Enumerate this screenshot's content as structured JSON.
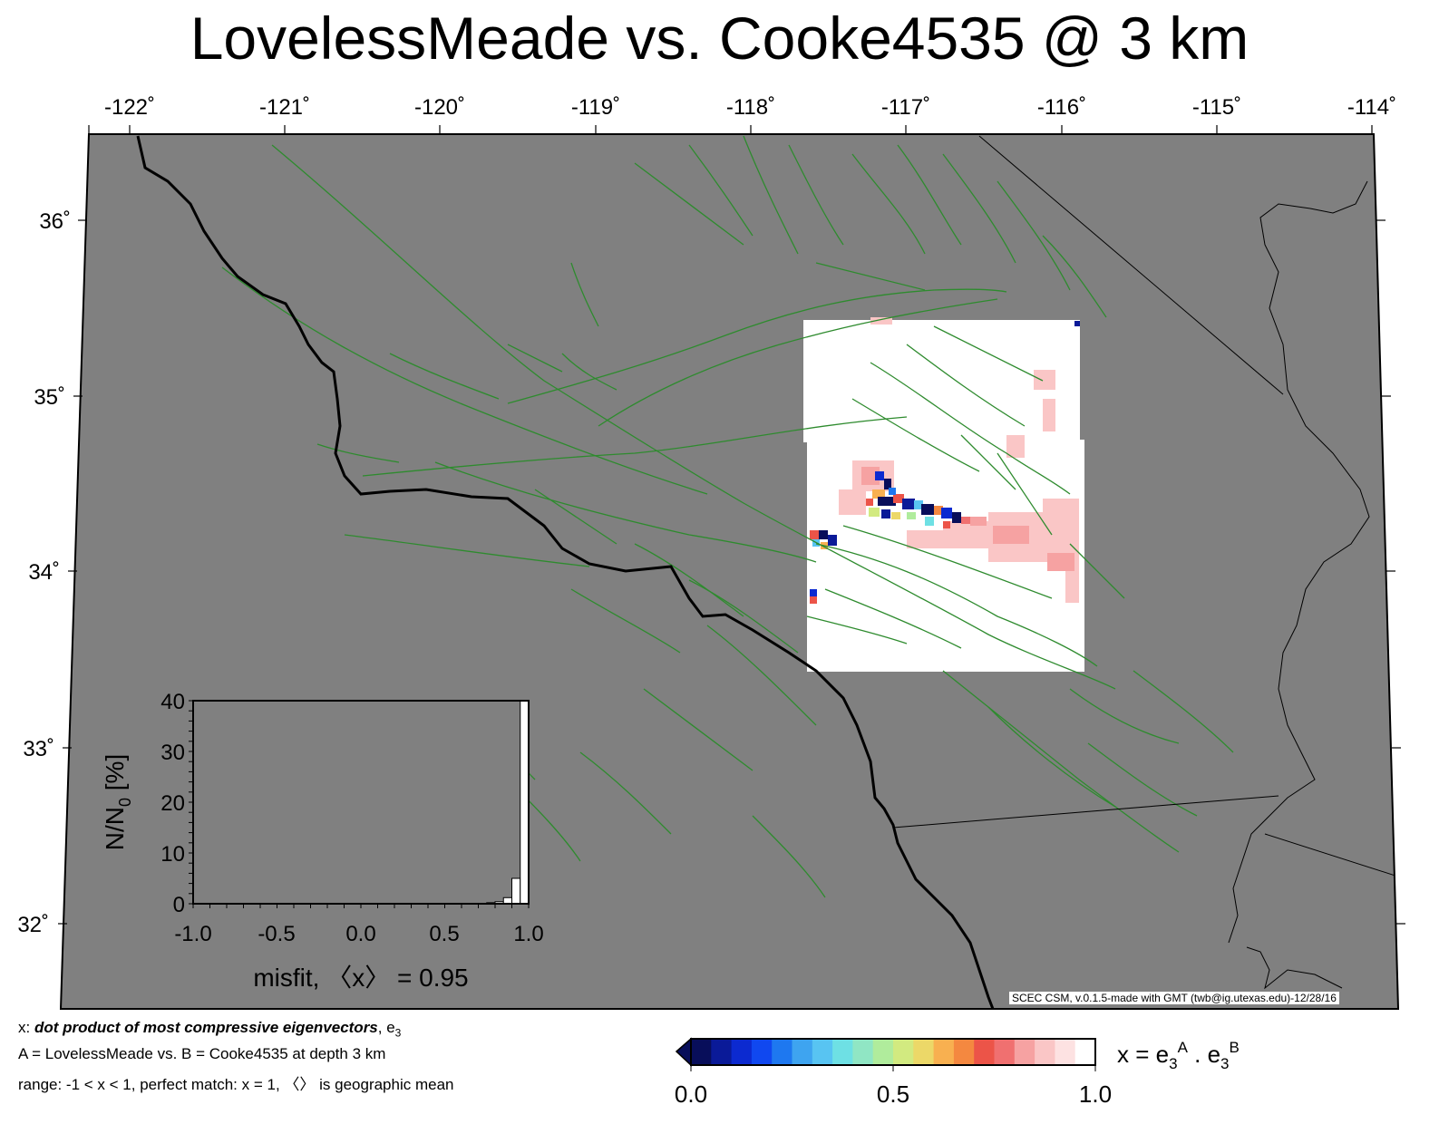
{
  "title": "LovelessMeade vs. Cooke4535 @ 3 km",
  "map": {
    "lon_labels": [
      "-122˚",
      "-121˚",
      "-120˚",
      "-119˚",
      "-118˚",
      "-117˚",
      "-116˚",
      "-115˚",
      "-114˚"
    ],
    "lat_labels": [
      "36˚",
      "35˚",
      "34˚",
      "33˚",
      "32˚"
    ],
    "land_color": "#808080",
    "fault_color": "#2e8b2e",
    "credit": "SCEC CSM, v.0.1.5-made with GMT (twb@ig.utexas.edu)-12/28/16"
  },
  "inset": {
    "y_ticks": [
      "40",
      "30",
      "20",
      "10",
      "0"
    ],
    "x_ticks": [
      "-1.0",
      "-0.5",
      "0.0",
      "0.5",
      "1.0"
    ],
    "ylabel_main": "N/N",
    "ylabel_sub": "0",
    "ylabel_tail": " [%]",
    "xlabel": "misfit, 〈x〉 = 0.95"
  },
  "chart_data": {
    "type": "bar",
    "title": "",
    "xlabel": "misfit, 〈x〉 = 0.95",
    "ylabel": "N/N0 [%]",
    "xlim": [
      -1.0,
      1.0
    ],
    "ylim": [
      0,
      40
    ],
    "bin_centers": [
      0.775,
      0.825,
      0.875,
      0.925,
      0.975
    ],
    "values": [
      0.2,
      0.4,
      1.2,
      5.0,
      40.0
    ]
  },
  "captions": {
    "line1_prefix": "x: ",
    "line1_bold": "dot product of most compressive eigenvectors",
    "line1_suffix": ", e",
    "line1_sub": "3",
    "line2": "A = LovelessMeade vs.  B = Cooke4535 at depth 3 km",
    "line3": "range: -1 < x < 1, perfect match: x = 1, 〈〉 is geographic mean"
  },
  "colorbar": {
    "ticks": [
      "0.0",
      "0.5",
      "1.0"
    ],
    "label_x": "x = e",
    "label_sub": "3",
    "label_sup_a": "A",
    "label_dot": " . e",
    "label_sup_b": "B",
    "colors": [
      "#080e5a",
      "#0a1a98",
      "#0c2ad0",
      "#1048f0",
      "#1e78f0",
      "#3ea4f0",
      "#58c4f2",
      "#6ee0e4",
      "#90e6c4",
      "#b0ec9c",
      "#d2ea80",
      "#ecd868",
      "#f8b050",
      "#f48840",
      "#ec5448",
      "#f07070",
      "#f6a2a2",
      "#fac6c6",
      "#fde2e2",
      "#ffffff"
    ]
  }
}
